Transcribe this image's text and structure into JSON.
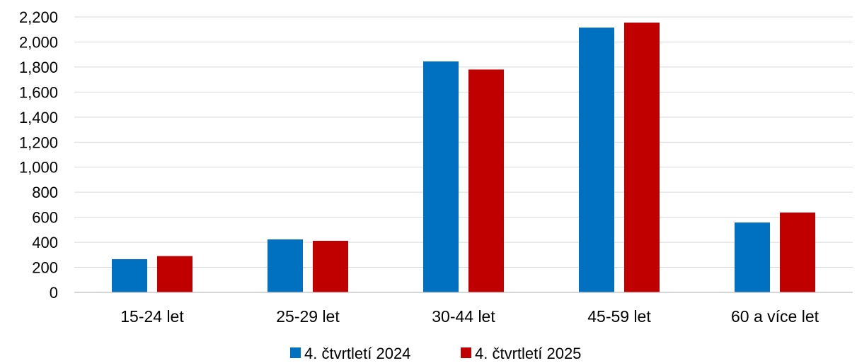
{
  "chart_data": {
    "type": "bar",
    "categories": [
      "15-24 let",
      "25-29 let",
      "30-44 let",
      "45-59 let",
      "60 a více let"
    ],
    "series": [
      {
        "name": "4. čtvrtletí 2024",
        "color": "#0070c0",
        "values": [
          265,
          423,
          1845,
          2115,
          558
        ]
      },
      {
        "name": "4. čtvrtletí 2025",
        "color": "#c00000",
        "values": [
          290,
          412,
          1780,
          2155,
          638
        ]
      }
    ],
    "title": "",
    "xlabel": "",
    "ylabel": "",
    "ylim": [
      0,
      2200
    ],
    "yticks": [
      0,
      200,
      400,
      600,
      800,
      1000,
      1200,
      1400,
      1600,
      1800,
      2000,
      2200
    ],
    "ytick_labels": [
      "0",
      "200",
      "400",
      "600",
      "800",
      "1,000",
      "1,200",
      "1,400",
      "1,600",
      "1,800",
      "2,000",
      "2,200"
    ],
    "grid": true,
    "legend": "bottom"
  }
}
